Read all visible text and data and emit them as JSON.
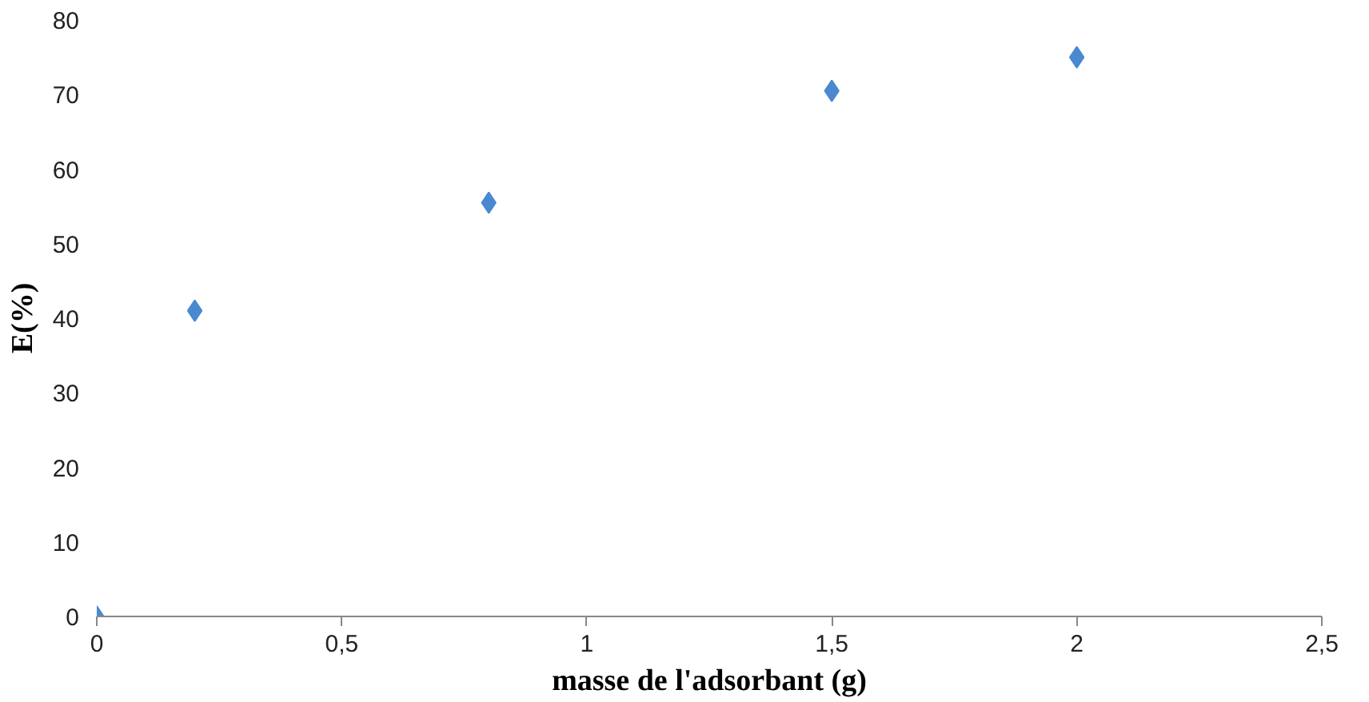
{
  "chart_data": {
    "type": "scatter",
    "xlabel": "masse de l'adsorbant (g)",
    "ylabel": "E(%)",
    "x": [
      0,
      0.2,
      0.8,
      1.5,
      2
    ],
    "series": [
      {
        "color": "#4a89d0",
        "values": [
          0,
          41,
          55.5,
          70.5,
          75
        ]
      }
    ],
    "xlim": [
      0,
      2.5
    ],
    "ylim": [
      0,
      80
    ],
    "xticks": [
      0,
      {
        "value": 0.5,
        "label": "0,5"
      },
      1,
      {
        "value": 1.5,
        "label": "1,5"
      },
      2,
      {
        "value": 2.5,
        "label": "2,5"
      }
    ],
    "yticks": [
      0,
      10,
      20,
      30,
      40,
      50,
      60,
      70,
      80
    ],
    "marker": "diamond"
  }
}
